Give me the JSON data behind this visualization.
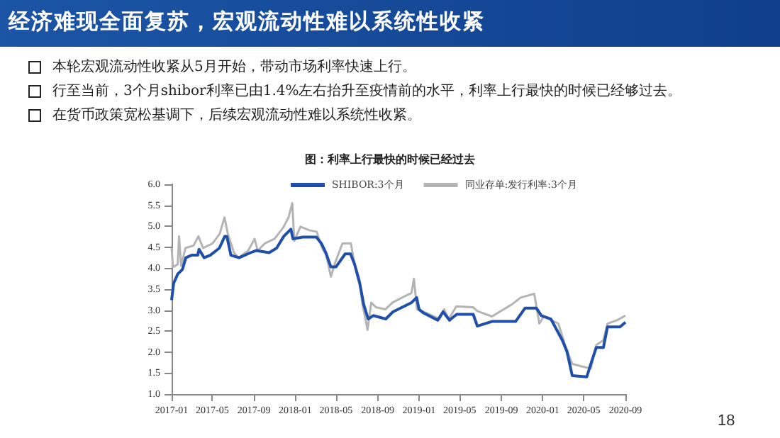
{
  "chart_data": {
    "type": "line",
    "title": "经济难现全面复苏，宏观流动性难以系统性收紧",
    "subtitle": "图：利率上行最快的时候已经过去",
    "annotations": [
      "本轮宏观流动性收紧从5月开始，带动市场利率快速上行。",
      "行至当前，3个月shibor利率已由1.4%左右抬升至疫情前的水平，利率上行最快的时候已经够过去。",
      "在货币政策宽松基调下，后续宏观流动性难以系统性收紧。",
      "18"
    ],
    "xlim": [
      "2017-01",
      "2020-09"
    ],
    "xticks": [
      "2017-01",
      "2017-05",
      "2017-09",
      "2018-01",
      "2018-05",
      "2018-09",
      "2019-01",
      "2019-05",
      "2019-09",
      "2020-01",
      "2020-05",
      "2020-09"
    ],
    "ylim": [
      1,
      6
    ],
    "yticks": [
      {
        "value": 1,
        "label": "1.0"
      },
      {
        "value": 1.5,
        "label": "1.5"
      },
      {
        "value": 2,
        "label": "2.0"
      },
      {
        "value": 2.5,
        "label": "2.5"
      },
      {
        "value": 3,
        "label": "3.0"
      },
      {
        "value": 3.5,
        "label": "3.5"
      },
      {
        "value": 4,
        "label": "4.0"
      },
      {
        "value": 4.5,
        "label": "4.5"
      },
      {
        "value": 5,
        "label": "5.0"
      },
      {
        "value": 5.5,
        "label": "5.5"
      },
      {
        "value": 6,
        "label": "6.0"
      }
    ],
    "grid": false,
    "legend": "top",
    "marker": "none",
    "line_style": "solid",
    "series": [
      {
        "name": "SHIBOR:3个月",
        "color": "#1f4fa8",
        "x": [
          "2017-01-01",
          "2017-01-07",
          "2017-01-19",
          "2017-02-02",
          "2017-02-12",
          "2017-03-01",
          "2017-03-19",
          "2017-03-23",
          "2017-04-07",
          "2017-04-25",
          "2017-05-22",
          "2017-06-07",
          "2017-06-13",
          "2017-06-25",
          "2017-07-19",
          "2017-08-22",
          "2017-09-07",
          "2017-10-16",
          "2017-11-07",
          "2017-11-28",
          "2017-12-19",
          "2017-12-25",
          "2018-01-23",
          "2018-03-04",
          "2018-03-19",
          "2018-04-01",
          "2018-04-16",
          "2018-05-01",
          "2018-05-28",
          "2018-06-13",
          "2018-06-25",
          "2018-07-10",
          "2018-07-22",
          "2018-08-04",
          "2018-08-19",
          "2018-09-25",
          "2018-10-16",
          "2018-12-10",
          "2018-12-25",
          "2019-01-01",
          "2019-01-13",
          "2019-02-25",
          "2019-03-13",
          "2019-04-01",
          "2019-04-22",
          "2019-06-10",
          "2019-06-22",
          "2019-08-04",
          "2019-10-13",
          "2019-11-10",
          "2019-12-13",
          "2019-12-28",
          "2020-01-25",
          "2020-02-28",
          "2020-03-13",
          "2020-03-28",
          "2020-05-10",
          "2020-05-22",
          "2020-06-07",
          "2020-06-28",
          "2020-07-10",
          "2020-08-16",
          "2020-09-01"
        ],
        "values": [
          3.24,
          3.64,
          3.86,
          3.97,
          4.25,
          4.31,
          4.31,
          4.45,
          4.25,
          4.31,
          4.48,
          4.76,
          4.76,
          4.31,
          4.25,
          4.37,
          4.42,
          4.37,
          4.48,
          4.76,
          4.93,
          4.7,
          4.74,
          4.74,
          4.59,
          4.37,
          4.03,
          4.03,
          4.34,
          4.34,
          4.09,
          3.64,
          3.13,
          2.79,
          2.87,
          2.79,
          2.96,
          3.18,
          3.3,
          3.02,
          2.94,
          2.76,
          2.96,
          2.76,
          2.9,
          2.9,
          2.62,
          2.73,
          2.73,
          3.05,
          3.05,
          2.87,
          2.79,
          2.28,
          2.0,
          1.44,
          1.41,
          1.72,
          2.11,
          2.11,
          2.6,
          2.6,
          2.71
        ]
      },
      {
        "name": "同业存单:发行利率:3个月",
        "color": "#b4b4b4",
        "x": [
          "2017-01-01",
          "2017-01-05",
          "2017-01-19",
          "2017-01-23",
          "2017-01-29",
          "2017-02-11",
          "2017-03-07",
          "2017-03-21",
          "2017-04-04",
          "2017-05-02",
          "2017-05-23",
          "2017-06-06",
          "2017-06-16",
          "2017-07-04",
          "2017-07-18",
          "2017-08-15",
          "2017-09-03",
          "2017-09-12",
          "2017-10-03",
          "2017-11-01",
          "2017-11-28",
          "2017-12-12",
          "2017-12-23",
          "2017-12-29",
          "2018-01-16",
          "2018-02-13",
          "2018-03-05",
          "2018-03-21",
          "2018-04-02",
          "2018-04-16",
          "2018-04-29",
          "2018-05-20",
          "2018-06-14",
          "2018-06-25",
          "2018-07-09",
          "2018-07-18",
          "2018-07-27",
          "2018-08-02",
          "2018-08-13",
          "2018-08-27",
          "2018-09-24",
          "2018-10-15",
          "2018-11-12",
          "2018-12-10",
          "2018-12-17",
          "2018-12-26",
          "2019-01-21",
          "2019-03-03",
          "2019-03-16",
          "2019-03-30",
          "2019-04-21",
          "2019-06-09",
          "2019-06-22",
          "2019-08-04",
          "2019-10-01",
          "2019-10-28",
          "2019-12-07",
          "2019-12-22",
          "2020-01-04",
          "2020-02-16",
          "2020-03-07",
          "2020-03-28",
          "2020-04-25",
          "2020-05-22",
          "2020-06-07",
          "2020-06-28",
          "2020-07-10",
          "2020-08-07",
          "2020-09-01"
        ],
        "values": [
          4.48,
          4.03,
          4.09,
          4.76,
          4.06,
          4.48,
          4.54,
          4.76,
          4.48,
          4.59,
          4.82,
          5.21,
          4.82,
          4.37,
          4.25,
          4.42,
          4.7,
          4.42,
          4.59,
          4.7,
          4.99,
          5.21,
          5.55,
          4.65,
          4.99,
          4.9,
          4.87,
          4.48,
          4.31,
          3.8,
          4.14,
          4.59,
          4.59,
          4.09,
          3.75,
          3.13,
          2.79,
          2.53,
          3.18,
          3.07,
          3.02,
          3.18,
          3.3,
          3.41,
          3.75,
          3.02,
          2.94,
          2.79,
          3.02,
          2.79,
          3.09,
          3.07,
          2.98,
          2.85,
          3.13,
          3.3,
          3.39,
          2.68,
          2.85,
          2.68,
          2.17,
          1.72,
          1.66,
          1.61,
          2.17,
          2.28,
          2.68,
          2.76,
          2.87
        ]
      }
    ]
  }
}
